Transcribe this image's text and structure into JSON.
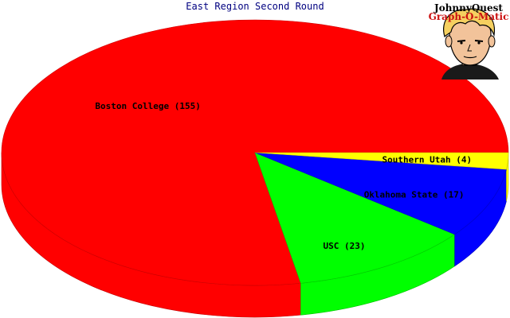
{
  "chart_data": {
    "type": "pie",
    "title": "East Region Second Round",
    "categories": [
      "Boston College",
      "USC",
      "Oklahoma State",
      "Southern Utah"
    ],
    "values": [
      155,
      23,
      17,
      4
    ],
    "labels": [
      "Boston College (155)",
      "USC (23)",
      "Oklahoma State (17)",
      "Southern Utah (4)"
    ],
    "colors": [
      "#ff0000",
      "#00ff00",
      "#0000ff",
      "#ffff00"
    ],
    "three_d": true,
    "legend": "none"
  },
  "logo": {
    "line1": "JohnnyQuest",
    "line2": "Graph-O-Matic",
    "icon": "cartoon-boy-portrait"
  }
}
